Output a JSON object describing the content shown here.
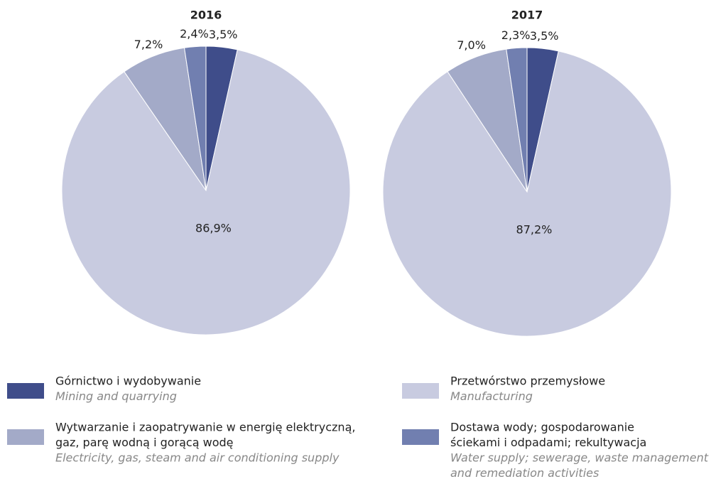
{
  "chart_data": [
    {
      "type": "pie",
      "title": "2016",
      "values": [
        3.5,
        86.9,
        7.2,
        2.4
      ],
      "value_labels": [
        "3,5%",
        "86,9%",
        "7,2%",
        "2,4%"
      ]
    },
    {
      "type": "pie",
      "title": "2017",
      "values": [
        3.5,
        87.2,
        7.0,
        2.3
      ],
      "value_labels": [
        "3,5%",
        "87,2%",
        "7,0%",
        "2,3%"
      ]
    }
  ],
  "legend": [
    {
      "name": [
        "Górnictwo i wydobywanie"
      ],
      "name_en": [
        "Mining and quarrying"
      ],
      "color": "#3f4d8a"
    },
    {
      "name": [
        "Przetwórstwo przemysłowe"
      ],
      "name_en": [
        "Manufacturing"
      ],
      "color": "#c8cbe0"
    },
    {
      "name": [
        "Wytwarzanie i zaopatrywanie w energię elektryczną,",
        "gaz, parę wodną i gorącą wodę"
      ],
      "name_en": [
        "Electricity, gas, steam and air conditioning supply"
      ],
      "color": "#a3aac8"
    },
    {
      "name": [
        "Dostawa wody; gospodarowanie",
        "ściekami i odpadami; rekultywacja"
      ],
      "name_en": [
        "Water supply; sewerage, waste management",
        "and remediation activities"
      ],
      "color": "#717fb0"
    }
  ]
}
